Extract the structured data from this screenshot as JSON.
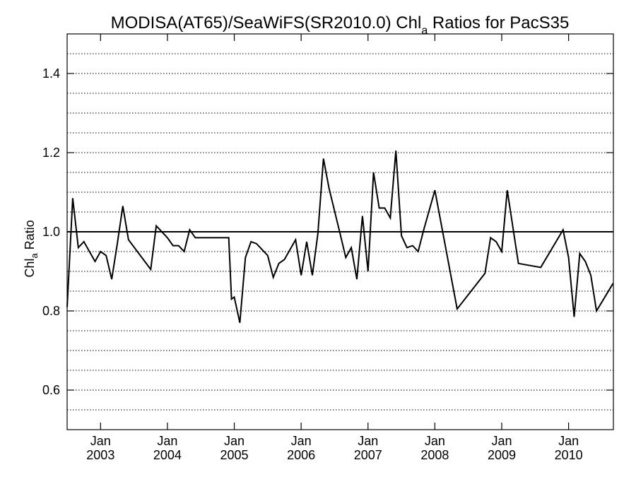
{
  "chart_data": {
    "type": "line",
    "title_main": "MODISA(AT65)/SeaWiFS(SR2010.0)  Chl",
    "title_sub": "a",
    "title_tail": " Ratios for PacS35",
    "ylabel_main": "Chl",
    "ylabel_sub": "a",
    "ylabel_tail": " Ratio",
    "ylim": [
      0.5,
      1.5
    ],
    "xlim": [
      2002.5,
      2010.67
    ],
    "yticks": [
      0.6,
      0.8,
      1.0,
      1.2,
      1.4
    ],
    "ytick_labels": [
      "0.6",
      "0.8",
      "1.0",
      "1.2",
      "1.4"
    ],
    "grid": true,
    "grid_step": 0.05,
    "reference_line": 1.0,
    "xticks": [
      {
        "value": 2003,
        "month": "Jan",
        "year": "2003"
      },
      {
        "value": 2004,
        "month": "Jan",
        "year": "2004"
      },
      {
        "value": 2005,
        "month": "Jan",
        "year": "2005"
      },
      {
        "value": 2006,
        "month": "Jan",
        "year": "2006"
      },
      {
        "value": 2007,
        "month": "Jan",
        "year": "2007"
      },
      {
        "value": 2008,
        "month": "Jan",
        "year": "2008"
      },
      {
        "value": 2009,
        "month": "Jan",
        "year": "2009"
      },
      {
        "value": 2010,
        "month": "Jan",
        "year": "2010"
      }
    ],
    "series": [
      {
        "x": [
          2002.5,
          2002.583,
          2002.667,
          2002.75,
          2002.917,
          2003.0,
          2003.083,
          2003.167,
          2003.25,
          2003.333,
          2003.417,
          2003.75,
          2003.833,
          2004.0,
          2004.083,
          2004.167,
          2004.25,
          2004.333,
          2004.417,
          2004.583,
          2004.917,
          2004.958,
          2005.0,
          2005.083,
          2005.167,
          2005.25,
          2005.333,
          2005.5,
          2005.583,
          2005.667,
          2005.75,
          2005.917,
          2006.0,
          2006.083,
          2006.167,
          2006.25,
          2006.333,
          2006.417,
          2006.583,
          2006.667,
          2006.75,
          2006.833,
          2006.917,
          2007.0,
          2007.083,
          2007.167,
          2007.25,
          2007.333,
          2007.417,
          2007.5,
          2007.583,
          2007.667,
          2007.75,
          2007.833,
          2008.0,
          2008.333,
          2008.75,
          2008.833,
          2008.917,
          2009.0,
          2009.083,
          2009.25,
          2009.583,
          2009.917,
          2010.0,
          2010.083,
          2010.167,
          2010.25,
          2010.333,
          2010.417,
          2010.667
        ],
        "y": [
          0.81,
          1.085,
          0.96,
          0.975,
          0.925,
          0.95,
          0.94,
          0.88,
          0.97,
          1.065,
          0.98,
          0.905,
          1.015,
          0.985,
          0.965,
          0.965,
          0.95,
          1.005,
          0.985,
          0.985,
          0.985,
          0.83,
          0.835,
          0.77,
          0.935,
          0.975,
          0.97,
          0.94,
          0.885,
          0.92,
          0.93,
          0.98,
          0.89,
          0.975,
          0.89,
          0.995,
          1.185,
          1.11,
          0.995,
          0.935,
          0.96,
          0.88,
          1.04,
          0.9,
          1.15,
          1.06,
          1.06,
          1.035,
          1.205,
          0.99,
          0.96,
          0.965,
          0.95,
          1.005,
          1.105,
          0.805,
          0.895,
          0.985,
          0.975,
          0.95,
          1.105,
          0.92,
          0.91,
          1.005,
          0.935,
          0.785,
          0.945,
          0.925,
          0.89,
          0.8,
          0.87
        ]
      }
    ]
  }
}
